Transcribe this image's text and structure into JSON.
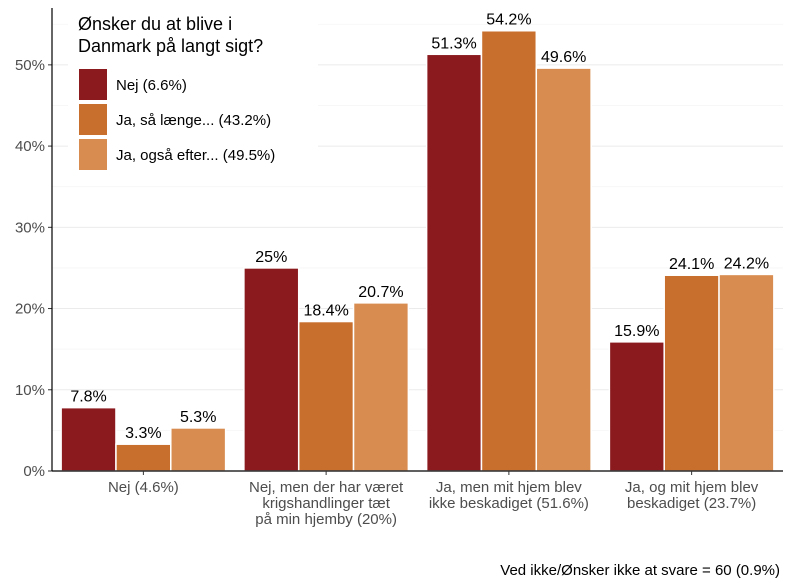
{
  "chart_data": {
    "type": "bar",
    "legend_title": [
      "Ønsker du at blive i",
      "Danmark på langt sigt?"
    ],
    "categories": [
      [
        "Nej (4.6%)"
      ],
      [
        "Nej, men der har været",
        "krigshandlinger tæt",
        "på min hjemby (20%)"
      ],
      [
        "Ja, men mit hjem blev",
        "ikke beskadiget (51.6%)"
      ],
      [
        "Ja, og mit hjem blev",
        "beskadiget (23.7%)"
      ]
    ],
    "series": [
      {
        "name": "Nej (6.6%)",
        "color": "#8b1a1f",
        "values": [
          7.8,
          25,
          51.3,
          15.9
        ],
        "labels": [
          "7.8%",
          "25%",
          "51.3%",
          "15.9%"
        ]
      },
      {
        "name": "Ja, så længe... (43.2%)",
        "color": "#c96f2e",
        "values": [
          3.3,
          18.4,
          54.2,
          24.1
        ],
        "labels": [
          "3.3%",
          "18.4%",
          "54.2%",
          "24.1%"
        ]
      },
      {
        "name": "Ja, også efter... (49.5%)",
        "color": "#d88c4f",
        "values": [
          5.3,
          20.7,
          49.6,
          24.2
        ],
        "labels": [
          "5.3%",
          "20.7%",
          "49.6%",
          "24.2%"
        ]
      }
    ],
    "ylim": [
      0,
      57
    ],
    "yticks": [
      0,
      10,
      20,
      30,
      40,
      50
    ],
    "ytick_labels": [
      "0%",
      "10%",
      "20%",
      "30%",
      "40%",
      "50%"
    ],
    "grid": true,
    "legend_position": "top-left",
    "caption": "Ved ikke/Ønsker ikke at svare = 60 (0.9%)"
  }
}
